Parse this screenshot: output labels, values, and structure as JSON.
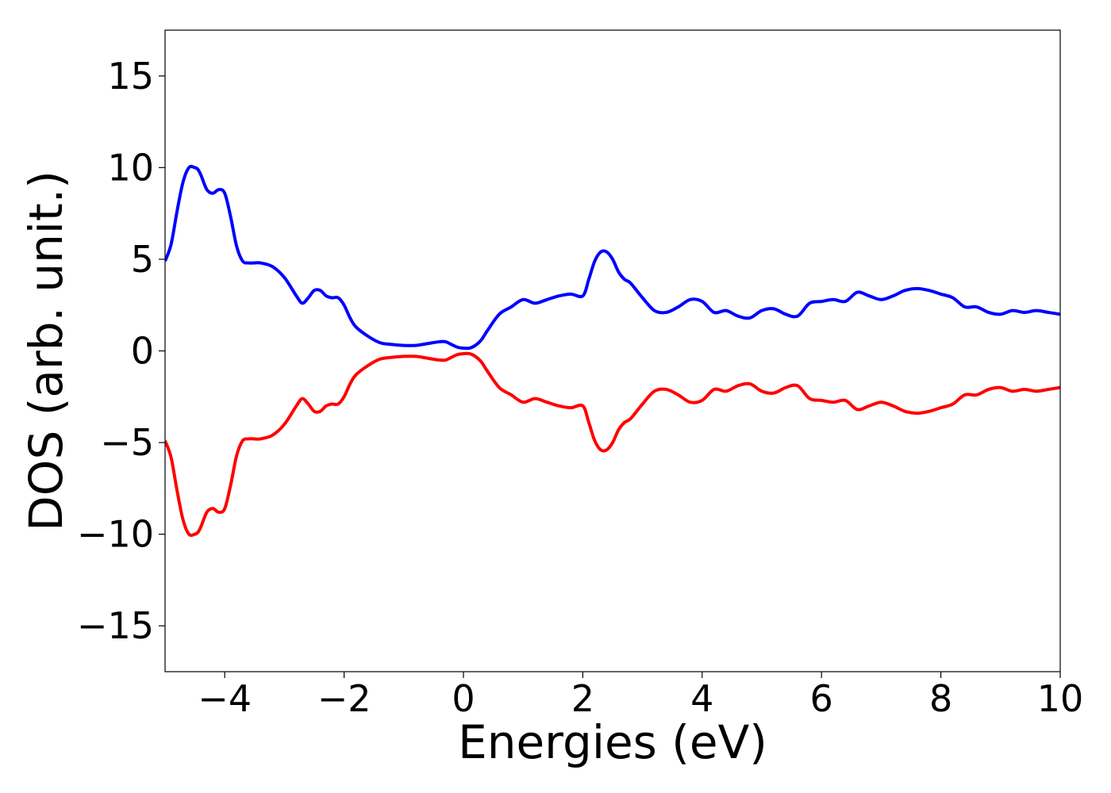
{
  "chart_data": {
    "type": "line",
    "xlabel": "Energies (eV)",
    "ylabel": "DOS (arb. unit.)",
    "xlim": [
      -5,
      10
    ],
    "ylim": [
      -17.5,
      17.5
    ],
    "xticks": [
      -4,
      -2,
      0,
      2,
      4,
      6,
      8,
      10
    ],
    "yticks": [
      -15,
      -10,
      -5,
      0,
      5,
      10,
      15
    ],
    "xtick_labels": [
      "−4",
      "−2",
      "0",
      "2",
      "4",
      "6",
      "8",
      "10"
    ],
    "ytick_labels": [
      "−15",
      "−10",
      "−5",
      "0",
      "5",
      "10",
      "15"
    ],
    "grid": false,
    "series": [
      {
        "color": "#0000ff",
        "x": [
          -5.0,
          -4.9,
          -4.8,
          -4.7,
          -4.6,
          -4.5,
          -4.45,
          -4.4,
          -4.3,
          -4.2,
          -4.1,
          -4.0,
          -3.9,
          -3.8,
          -3.7,
          -3.6,
          -3.5,
          -3.4,
          -3.2,
          -3.0,
          -2.8,
          -2.7,
          -2.6,
          -2.5,
          -2.4,
          -2.3,
          -2.2,
          -2.1,
          -2.0,
          -1.9,
          -1.8,
          -1.6,
          -1.4,
          -1.2,
          -1.0,
          -0.8,
          -0.6,
          -0.4,
          -0.3,
          -0.2,
          -0.1,
          0.0,
          0.1,
          0.2,
          0.3,
          0.4,
          0.6,
          0.8,
          1.0,
          1.2,
          1.4,
          1.6,
          1.8,
          2.0,
          2.1,
          2.2,
          2.3,
          2.4,
          2.5,
          2.6,
          2.7,
          2.8,
          3.0,
          3.2,
          3.4,
          3.6,
          3.8,
          4.0,
          4.2,
          4.4,
          4.6,
          4.8,
          5.0,
          5.2,
          5.4,
          5.6,
          5.8,
          6.0,
          6.2,
          6.4,
          6.6,
          6.8,
          7.0,
          7.2,
          7.4,
          7.6,
          7.8,
          8.0,
          8.2,
          8.4,
          8.6,
          8.8,
          9.0,
          9.2,
          9.4,
          9.6,
          9.8,
          10.0
        ],
        "y": [
          4.9,
          5.8,
          7.6,
          9.2,
          10.0,
          10.0,
          9.9,
          9.6,
          8.8,
          8.6,
          8.8,
          8.6,
          7.3,
          5.7,
          4.9,
          4.8,
          4.8,
          4.8,
          4.6,
          4.0,
          3.0,
          2.6,
          2.9,
          3.3,
          3.3,
          3.0,
          2.9,
          2.9,
          2.5,
          1.8,
          1.3,
          0.8,
          0.45,
          0.35,
          0.3,
          0.3,
          0.4,
          0.5,
          0.5,
          0.35,
          0.2,
          0.15,
          0.15,
          0.3,
          0.6,
          1.1,
          2.0,
          2.4,
          2.8,
          2.6,
          2.8,
          3.0,
          3.1,
          3.0,
          3.9,
          4.9,
          5.4,
          5.4,
          5.0,
          4.3,
          3.9,
          3.7,
          2.9,
          2.2,
          2.1,
          2.4,
          2.8,
          2.7,
          2.1,
          2.2,
          1.9,
          1.8,
          2.2,
          2.3,
          2.0,
          1.9,
          2.6,
          2.7,
          2.8,
          2.7,
          3.2,
          3.0,
          2.8,
          3.0,
          3.3,
          3.4,
          3.3,
          3.1,
          2.9,
          2.4,
          2.4,
          2.1,
          2.0,
          2.2,
          2.1,
          2.2,
          2.1,
          2.0
        ]
      },
      {
        "color": "#ff0000",
        "x": [
          -5.0,
          -4.9,
          -4.8,
          -4.7,
          -4.6,
          -4.5,
          -4.45,
          -4.4,
          -4.3,
          -4.2,
          -4.1,
          -4.0,
          -3.9,
          -3.8,
          -3.7,
          -3.6,
          -3.5,
          -3.4,
          -3.2,
          -3.0,
          -2.8,
          -2.7,
          -2.6,
          -2.5,
          -2.4,
          -2.3,
          -2.2,
          -2.1,
          -2.0,
          -1.9,
          -1.8,
          -1.6,
          -1.4,
          -1.2,
          -1.0,
          -0.8,
          -0.6,
          -0.4,
          -0.3,
          -0.2,
          -0.1,
          0.0,
          0.1,
          0.2,
          0.3,
          0.4,
          0.6,
          0.8,
          1.0,
          1.2,
          1.4,
          1.6,
          1.8,
          2.0,
          2.1,
          2.2,
          2.3,
          2.4,
          2.5,
          2.6,
          2.7,
          2.8,
          3.0,
          3.2,
          3.4,
          3.6,
          3.8,
          4.0,
          4.2,
          4.4,
          4.6,
          4.8,
          5.0,
          5.2,
          5.4,
          5.6,
          5.8,
          6.0,
          6.2,
          6.4,
          6.6,
          6.8,
          7.0,
          7.2,
          7.4,
          7.6,
          7.8,
          8.0,
          8.2,
          8.4,
          8.6,
          8.8,
          9.0,
          9.2,
          9.4,
          9.6,
          9.8,
          10.0
        ],
        "y": [
          -4.9,
          -5.8,
          -7.6,
          -9.2,
          -10.0,
          -10.0,
          -9.9,
          -9.6,
          -8.8,
          -8.6,
          -8.8,
          -8.6,
          -7.3,
          -5.7,
          -4.9,
          -4.8,
          -4.8,
          -4.8,
          -4.6,
          -4.0,
          -3.0,
          -2.6,
          -2.9,
          -3.3,
          -3.3,
          -3.0,
          -2.9,
          -2.9,
          -2.5,
          -1.8,
          -1.3,
          -0.8,
          -0.45,
          -0.35,
          -0.3,
          -0.3,
          -0.4,
          -0.5,
          -0.5,
          -0.35,
          -0.2,
          -0.15,
          -0.15,
          -0.3,
          -0.6,
          -1.1,
          -2.0,
          -2.4,
          -2.8,
          -2.6,
          -2.8,
          -3.0,
          -3.1,
          -3.0,
          -3.9,
          -4.9,
          -5.4,
          -5.4,
          -5.0,
          -4.3,
          -3.9,
          -3.7,
          -2.9,
          -2.2,
          -2.1,
          -2.4,
          -2.8,
          -2.7,
          -2.1,
          -2.2,
          -1.9,
          -1.8,
          -2.2,
          -2.3,
          -2.0,
          -1.9,
          -2.6,
          -2.7,
          -2.8,
          -2.7,
          -3.2,
          -3.0,
          -2.8,
          -3.0,
          -3.3,
          -3.4,
          -3.3,
          -3.1,
          -2.9,
          -2.4,
          -2.4,
          -2.1,
          -2.0,
          -2.2,
          -2.1,
          -2.2,
          -2.1,
          -2.0
        ]
      }
    ]
  }
}
